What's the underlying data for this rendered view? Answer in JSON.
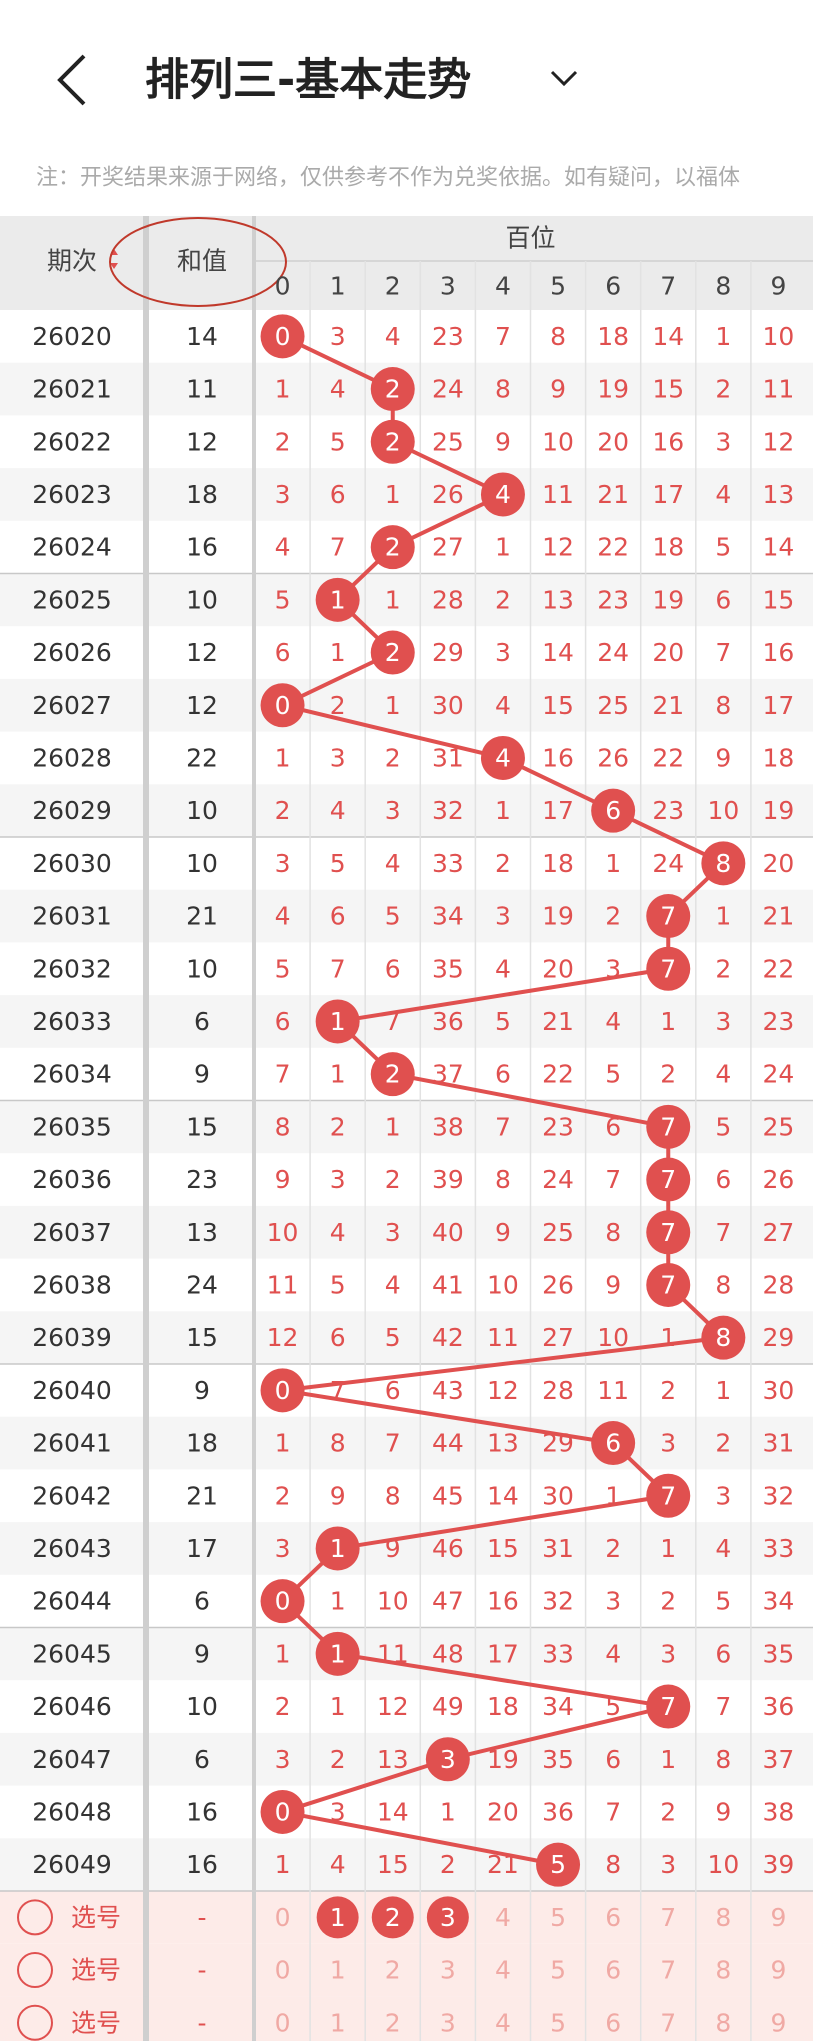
{
  "header": {
    "title": "排列三-基本走势"
  },
  "notice": "注：开奖结果来源于网络，仅供参考不作为兑奖依据。如有疑问，以福体",
  "table": {
    "columns": {
      "issue": "期次",
      "sum": "和值",
      "group": "百位",
      "digits": [
        0,
        1,
        2,
        3,
        4,
        5,
        6,
        7,
        8,
        9
      ]
    },
    "rows": [
      {
        "issue": "26020",
        "sum": 14,
        "cells": [
          0,
          3,
          4,
          23,
          7,
          8,
          18,
          14,
          1,
          10
        ],
        "hit": 0
      },
      {
        "issue": "26021",
        "sum": 11,
        "cells": [
          1,
          4,
          2,
          24,
          8,
          9,
          19,
          15,
          2,
          11
        ],
        "hit": 2
      },
      {
        "issue": "26022",
        "sum": 12,
        "cells": [
          2,
          5,
          2,
          25,
          9,
          10,
          20,
          16,
          3,
          12
        ],
        "hit": 2
      },
      {
        "issue": "26023",
        "sum": 18,
        "cells": [
          3,
          6,
          1,
          26,
          4,
          11,
          21,
          17,
          4,
          13
        ],
        "hit": 4
      },
      {
        "issue": "26024",
        "sum": 16,
        "cells": [
          4,
          7,
          2,
          27,
          1,
          12,
          22,
          18,
          5,
          14
        ],
        "hit": 2
      },
      {
        "issue": "26025",
        "sum": 10,
        "cells": [
          5,
          1,
          1,
          28,
          2,
          13,
          23,
          19,
          6,
          15
        ],
        "hit": 1
      },
      {
        "issue": "26026",
        "sum": 12,
        "cells": [
          6,
          1,
          2,
          29,
          3,
          14,
          24,
          20,
          7,
          16
        ],
        "hit": 2
      },
      {
        "issue": "26027",
        "sum": 12,
        "cells": [
          0,
          2,
          1,
          30,
          4,
          15,
          25,
          21,
          8,
          17
        ],
        "hit": 0
      },
      {
        "issue": "26028",
        "sum": 22,
        "cells": [
          1,
          3,
          2,
          31,
          4,
          16,
          26,
          22,
          9,
          18
        ],
        "hit": 4
      },
      {
        "issue": "26029",
        "sum": 10,
        "cells": [
          2,
          4,
          3,
          32,
          1,
          17,
          6,
          23,
          10,
          19
        ],
        "hit": 6
      },
      {
        "issue": "26030",
        "sum": 10,
        "cells": [
          3,
          5,
          4,
          33,
          2,
          18,
          1,
          24,
          8,
          20
        ],
        "hit": 8
      },
      {
        "issue": "26031",
        "sum": 21,
        "cells": [
          4,
          6,
          5,
          34,
          3,
          19,
          2,
          7,
          1,
          21
        ],
        "hit": 7
      },
      {
        "issue": "26032",
        "sum": 10,
        "cells": [
          5,
          7,
          6,
          35,
          4,
          20,
          3,
          7,
          2,
          22
        ],
        "hit": 7
      },
      {
        "issue": "26033",
        "sum": 6,
        "cells": [
          6,
          1,
          7,
          36,
          5,
          21,
          4,
          1,
          3,
          23
        ],
        "hit": 1
      },
      {
        "issue": "26034",
        "sum": 9,
        "cells": [
          7,
          1,
          2,
          37,
          6,
          22,
          5,
          2,
          4,
          24
        ],
        "hit": 2
      },
      {
        "issue": "26035",
        "sum": 15,
        "cells": [
          8,
          2,
          1,
          38,
          7,
          23,
          6,
          7,
          5,
          25
        ],
        "hit": 7
      },
      {
        "issue": "26036",
        "sum": 23,
        "cells": [
          9,
          3,
          2,
          39,
          8,
          24,
          7,
          7,
          6,
          26
        ],
        "hit": 7
      },
      {
        "issue": "26037",
        "sum": 13,
        "cells": [
          10,
          4,
          3,
          40,
          9,
          25,
          8,
          7,
          7,
          27
        ],
        "hit": 7
      },
      {
        "issue": "26038",
        "sum": 24,
        "cells": [
          11,
          5,
          4,
          41,
          10,
          26,
          9,
          7,
          8,
          28
        ],
        "hit": 7
      },
      {
        "issue": "26039",
        "sum": 15,
        "cells": [
          12,
          6,
          5,
          42,
          11,
          27,
          10,
          1,
          8,
          29
        ],
        "hit": 8
      },
      {
        "issue": "26040",
        "sum": 9,
        "cells": [
          0,
          7,
          6,
          43,
          12,
          28,
          11,
          2,
          1,
          30
        ],
        "hit": 0
      },
      {
        "issue": "26041",
        "sum": 18,
        "cells": [
          1,
          8,
          7,
          44,
          13,
          29,
          6,
          3,
          2,
          31
        ],
        "hit": 6
      },
      {
        "issue": "26042",
        "sum": 21,
        "cells": [
          2,
          9,
          8,
          45,
          14,
          30,
          1,
          7,
          3,
          32
        ],
        "hit": 7
      },
      {
        "issue": "26043",
        "sum": 17,
        "cells": [
          3,
          1,
          9,
          46,
          15,
          31,
          2,
          1,
          4,
          33
        ],
        "hit": 1
      },
      {
        "issue": "26044",
        "sum": 6,
        "cells": [
          0,
          1,
          10,
          47,
          16,
          32,
          3,
          2,
          5,
          34
        ],
        "hit": 0
      },
      {
        "issue": "26045",
        "sum": 9,
        "cells": [
          1,
          1,
          11,
          48,
          17,
          33,
          4,
          3,
          6,
          35
        ],
        "hit": 1
      },
      {
        "issue": "26046",
        "sum": 10,
        "cells": [
          2,
          1,
          12,
          49,
          18,
          34,
          5,
          7,
          7,
          36
        ],
        "hit": 7
      },
      {
        "issue": "26047",
        "sum": 6,
        "cells": [
          3,
          2,
          13,
          3,
          19,
          35,
          6,
          1,
          8,
          37
        ],
        "hit": 3
      },
      {
        "issue": "26048",
        "sum": 16,
        "cells": [
          0,
          3,
          14,
          1,
          20,
          36,
          7,
          2,
          9,
          38
        ],
        "hit": 0
      },
      {
        "issue": "26049",
        "sum": 16,
        "cells": [
          1,
          4,
          15,
          2,
          21,
          5,
          8,
          3,
          10,
          39
        ],
        "hit": 5
      }
    ],
    "select_rows": [
      {
        "label": "选号",
        "sum": "-",
        "digits": [
          0,
          1,
          2,
          3,
          4,
          5,
          6,
          7,
          8,
          9
        ],
        "selected": [
          1,
          2,
          3
        ]
      },
      {
        "label": "选号",
        "sum": "-",
        "digits": [
          0,
          1,
          2,
          3,
          4,
          5,
          6,
          7,
          8,
          9
        ],
        "selected": []
      },
      {
        "label": "选号",
        "sum": "-",
        "digits": [
          0,
          1,
          2,
          3,
          4,
          5,
          6,
          7,
          8,
          9
        ],
        "selected": []
      }
    ]
  }
}
